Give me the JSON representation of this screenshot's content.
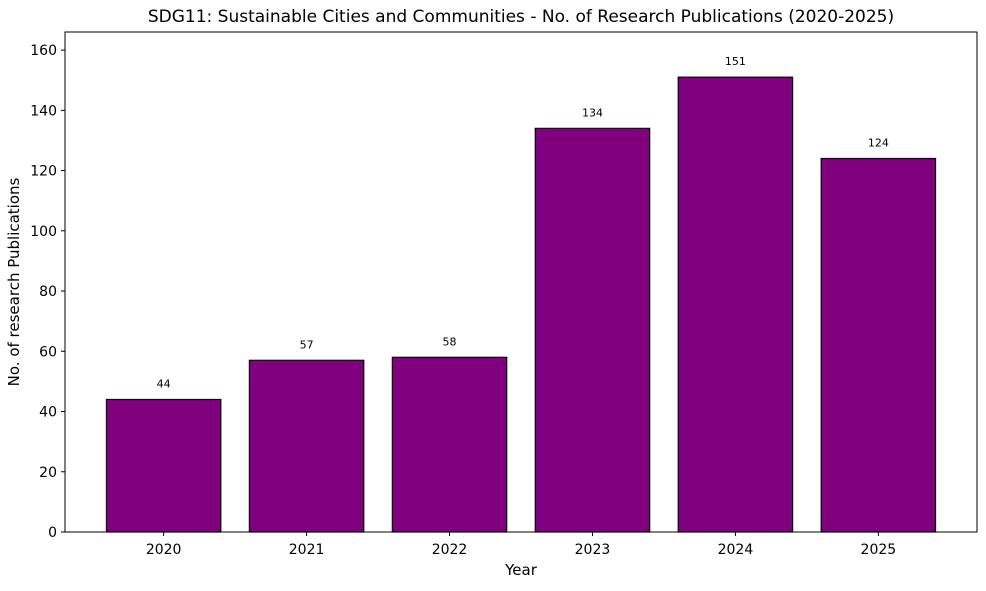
{
  "chart_data": {
    "type": "bar",
    "title": "SDG11: Sustainable Cities and Communities - No. of Research Publications (2020-2025)",
    "xlabel": "Year",
    "ylabel": "No. of research Publications",
    "categories": [
      "2020",
      "2021",
      "2022",
      "2023",
      "2024",
      "2025"
    ],
    "values": [
      44,
      57,
      58,
      134,
      151,
      124
    ],
    "data_labels": [
      "44",
      "57",
      "58",
      "134",
      "151",
      "124"
    ],
    "ylim": [
      0,
      166
    ],
    "yticks": [
      "0",
      "20",
      "40",
      "60",
      "80",
      "100",
      "120",
      "140",
      "160"
    ],
    "grid": false,
    "bar_color": "#800080",
    "edge_color": "#000000"
  }
}
